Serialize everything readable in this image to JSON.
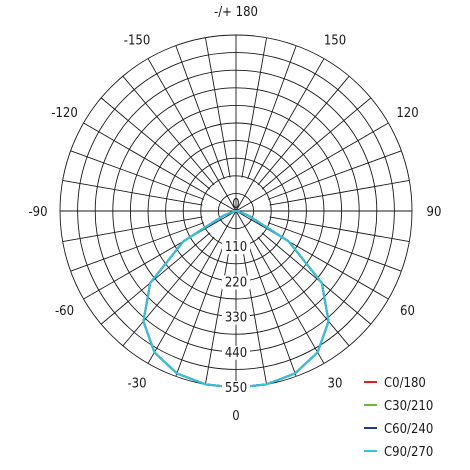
{
  "chart_data": {
    "type": "polar",
    "angle_labels": [
      "-/+ 180",
      "150",
      "120",
      "90",
      "60",
      "30",
      "0",
      "-30",
      "-60",
      "-90",
      "-120",
      "-150"
    ],
    "angle_values": [
      180,
      150,
      120,
      90,
      60,
      30,
      0,
      -30,
      -60,
      -90,
      -120,
      -150
    ],
    "radial_ticks": [
      0,
      110,
      220,
      330,
      440,
      550
    ],
    "radial_tick_labels": [
      "0",
      "110",
      "220",
      "330",
      "440",
      "550"
    ],
    "rmax": 550,
    "angle_grid_step_deg": 10,
    "radial_grid_step": 55,
    "grid": true,
    "legend_position": "bottom-right",
    "series": [
      {
        "name": "C0/180",
        "color": "#e02020",
        "angles": [
          -90,
          -80,
          -70,
          -60,
          -50,
          -40,
          -30,
          -20,
          -10,
          0,
          10,
          20,
          30,
          40,
          50,
          60,
          70,
          80,
          90
        ],
        "values": [
          0,
          5,
          40,
          190,
          350,
          450,
          510,
          540,
          550,
          552,
          550,
          540,
          510,
          450,
          350,
          190,
          40,
          5,
          0
        ]
      },
      {
        "name": "C30/210",
        "color": "#66bb33",
        "angles": [
          -90,
          -80,
          -70,
          -60,
          -50,
          -40,
          -30,
          -20,
          -10,
          0,
          10,
          20,
          30,
          40,
          50,
          60,
          70,
          80,
          90
        ],
        "values": [
          0,
          5,
          40,
          190,
          350,
          450,
          510,
          540,
          550,
          552,
          550,
          540,
          510,
          450,
          350,
          190,
          40,
          5,
          0
        ]
      },
      {
        "name": "C60/240",
        "color": "#1a3a8f",
        "angles": [
          -90,
          -80,
          -70,
          -60,
          -50,
          -40,
          -30,
          -20,
          -10,
          0,
          10,
          20,
          30,
          40,
          50,
          60,
          70,
          80,
          90
        ],
        "values": [
          0,
          5,
          40,
          190,
          350,
          450,
          510,
          540,
          550,
          552,
          550,
          540,
          510,
          450,
          350,
          190,
          40,
          5,
          0
        ]
      },
      {
        "name": "C90/270",
        "color": "#33c3dd",
        "angles": [
          -90,
          -80,
          -70,
          -60,
          -50,
          -40,
          -30,
          -20,
          -10,
          0,
          10,
          20,
          30,
          40,
          50,
          60,
          70,
          80,
          90
        ],
        "values": [
          0,
          5,
          40,
          190,
          350,
          450,
          510,
          540,
          550,
          552,
          550,
          540,
          510,
          450,
          350,
          190,
          40,
          5,
          0
        ]
      }
    ]
  }
}
